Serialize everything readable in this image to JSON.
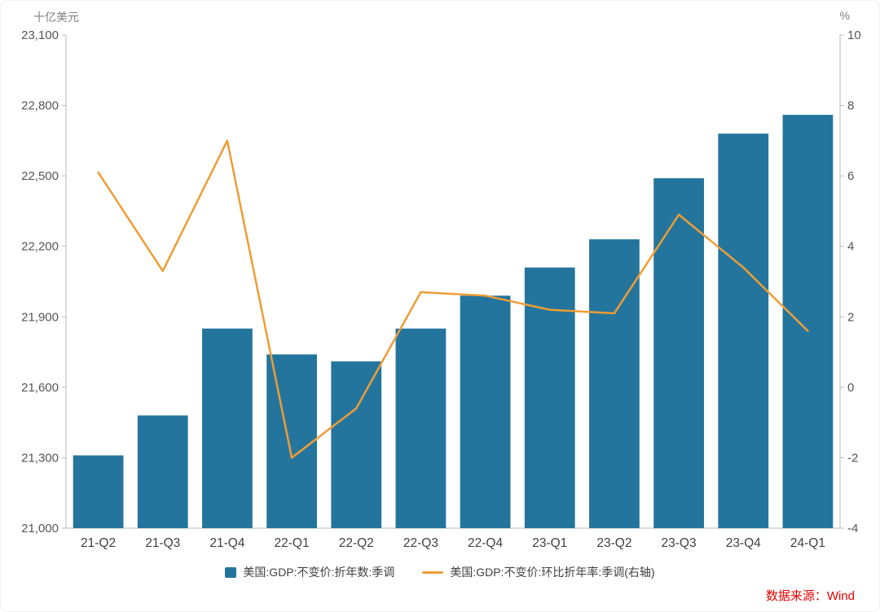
{
  "header": {
    "left_axis_title": "十亿美元",
    "right_axis_title": "%"
  },
  "legend": {
    "items": [
      {
        "label": "美国:GDP:不变价:折年数:季调",
        "type": "bar",
        "color": "#24759d"
      },
      {
        "label": "美国:GDP:不变价:环比折年率:季调(右轴)",
        "type": "line",
        "color": "#ee9d36"
      }
    ]
  },
  "footer": {
    "source": "数据来源：Wind",
    "source_color": "#e60000"
  },
  "chart_data": {
    "type": "bar",
    "title": "",
    "categories": [
      "21-Q2",
      "21-Q3",
      "21-Q4",
      "22-Q1",
      "22-Q2",
      "22-Q3",
      "22-Q4",
      "23-Q1",
      "23-Q2",
      "23-Q3",
      "23-Q4",
      "24-Q1"
    ],
    "series": [
      {
        "name": "美国:GDP:不变价:折年数:季调",
        "type": "bar",
        "axis": "left",
        "color": "#24759d",
        "values": [
          21310,
          21480,
          21850,
          21740,
          21710,
          21850,
          21990,
          22110,
          22230,
          22490,
          22680,
          22760
        ]
      },
      {
        "name": "美国:GDP:不变价:环比折年率:季调(右轴)",
        "type": "line",
        "axis": "right",
        "color": "#ee9d36",
        "values": [
          6.1,
          3.3,
          7.0,
          -2.0,
          -0.6,
          2.7,
          2.6,
          2.2,
          2.1,
          4.9,
          3.4,
          1.6
        ]
      }
    ],
    "left_axis": {
      "title": "十亿美元",
      "min": 21000,
      "max": 23100,
      "step": 300
    },
    "right_axis": {
      "title": "%",
      "min": -4,
      "max": 10,
      "step": 2
    },
    "grid": false,
    "legend_position": "bottom"
  }
}
